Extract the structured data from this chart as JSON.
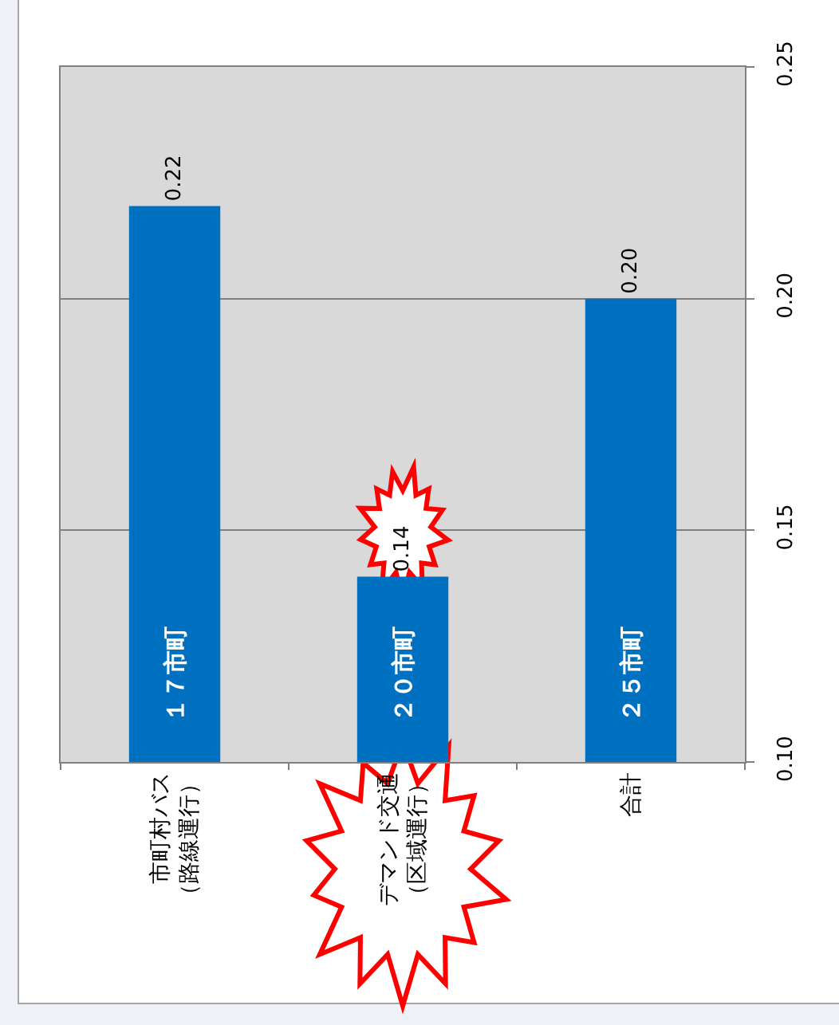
{
  "chart_data": {
    "type": "bar",
    "categories": [
      "市町村バス（路線運行）",
      "デマンド交通（区域運行）",
      "合計"
    ],
    "values": [
      0.22,
      0.14,
      0.2
    ],
    "color": "#0070c0",
    "ylim": [
      0.1,
      0.25
    ],
    "yticks": [
      {
        "value": 0.1,
        "label": "0.10"
      },
      {
        "value": 0.15,
        "label": "0.15"
      },
      {
        "value": 0.2,
        "label": "0.20"
      },
      {
        "value": 0.25,
        "label": "0.25"
      }
    ],
    "grid": "y",
    "value_labels": [
      "0.22",
      "0.14",
      "0.20"
    ],
    "annotations": [
      "１７市町",
      "２０市町",
      "２５市町"
    ]
  }
}
